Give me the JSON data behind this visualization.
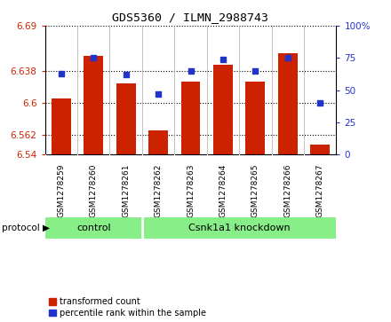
{
  "title": "GDS5360 / ILMN_2988743",
  "samples": [
    "GSM1278259",
    "GSM1278260",
    "GSM1278261",
    "GSM1278262",
    "GSM1278263",
    "GSM1278264",
    "GSM1278265",
    "GSM1278266",
    "GSM1278267"
  ],
  "transformed_counts": [
    6.605,
    6.655,
    6.623,
    6.568,
    6.625,
    6.645,
    6.625,
    6.658,
    6.552
  ],
  "percentile_ranks": [
    63,
    75,
    62,
    47,
    65,
    74,
    65,
    75,
    40
  ],
  "groups": [
    "control",
    "control",
    "control",
    "Csnk1a1 knockdown",
    "Csnk1a1 knockdown",
    "Csnk1a1 knockdown",
    "Csnk1a1 knockdown",
    "Csnk1a1 knockdown",
    "Csnk1a1 knockdown"
  ],
  "group_labels": [
    "control",
    "Csnk1a1 knockdown"
  ],
  "control_count": 3,
  "bar_color": "#cc2200",
  "dot_color": "#2233cc",
  "ylim_left": [
    6.54,
    6.69
  ],
  "ylim_right": [
    0,
    100
  ],
  "yticks_left": [
    6.54,
    6.5625,
    6.6,
    6.6375,
    6.69
  ],
  "yticks_right": [
    0,
    25,
    50,
    75,
    100
  ],
  "left_tick_color": "#cc2200",
  "right_tick_color": "#2233cc",
  "green_color": "#88ee88",
  "gray_color": "#d8d8d8",
  "legend_items": [
    "transformed count",
    "percentile rank within the sample"
  ],
  "protocol_label": "protocol"
}
